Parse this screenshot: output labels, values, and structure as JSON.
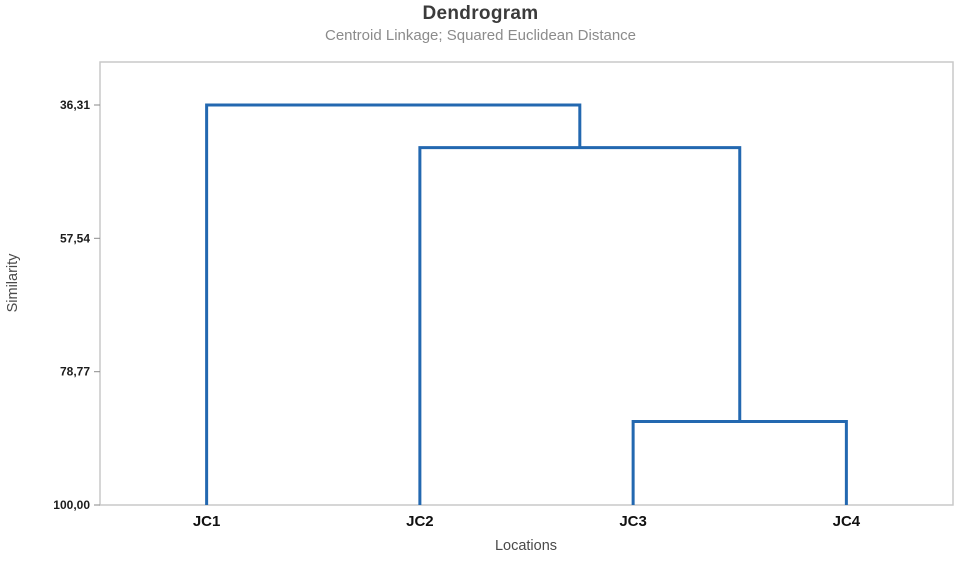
{
  "chart_data": {
    "type": "dendrogram",
    "title": "Dendrogram",
    "subtitle": "Centroid Linkage; Squared Euclidean Distance",
    "xlabel": "Locations",
    "ylabel": "Similarity",
    "leaves": [
      "JC1",
      "JC2",
      "JC3",
      "JC4"
    ],
    "y_ticks": [
      "36,31",
      "57,54",
      "78,77",
      "100,00"
    ],
    "y_tick_values": [
      36.31,
      57.54,
      78.77,
      100.0
    ],
    "y_range_top_to_bottom": [
      36.31,
      100.0
    ],
    "merges": [
      {
        "id": "m1",
        "left": "JC3",
        "right": "JC4",
        "similarity": 86.7
      },
      {
        "id": "m2",
        "left": "JC2",
        "right": "m1",
        "similarity": 43.1
      },
      {
        "id": "m3",
        "left": "JC1",
        "right": "m2",
        "similarity": 36.31
      }
    ],
    "line_color": "#2368b0",
    "plot_border_color": "#c9c9c9",
    "legend": "none",
    "grid": "off"
  }
}
